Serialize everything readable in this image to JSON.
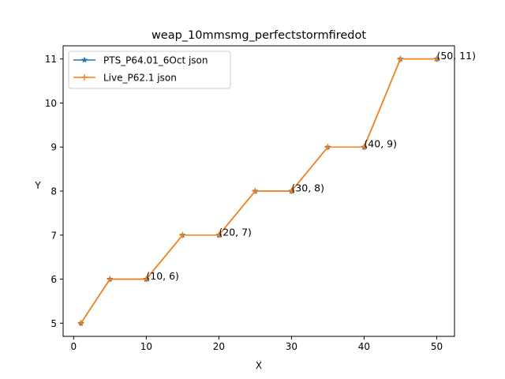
{
  "chart_data": {
    "type": "line",
    "title": "weap_10mmsmg_perfectstormfiredot",
    "xlabel": "X",
    "ylabel": "Y",
    "xlim": [
      -1.45,
      52.45
    ],
    "ylim": [
      4.7,
      11.3
    ],
    "xticks": [
      0,
      10,
      20,
      30,
      40,
      50
    ],
    "yticks": [
      5,
      6,
      7,
      8,
      9,
      10,
      11
    ],
    "grid": false,
    "legend_position": "upper-left",
    "series": [
      {
        "name": "PTS_P64.01_6Oct json",
        "color": "#1f77b4",
        "marker": "star",
        "x": [
          1,
          5,
          10,
          15,
          20,
          25,
          30,
          35,
          40,
          45,
          50
        ],
        "y": [
          5,
          6,
          6,
          7,
          7,
          8,
          8,
          9,
          9,
          11,
          11
        ]
      },
      {
        "name": "Live_P62.1 json",
        "color": "#ff7f0e",
        "marker": "plus",
        "x": [
          1,
          5,
          10,
          15,
          20,
          25,
          30,
          35,
          40,
          45,
          50
        ],
        "y": [
          5,
          6,
          6,
          7,
          7,
          8,
          8,
          9,
          9,
          11,
          11
        ]
      }
    ],
    "annotations": [
      {
        "x": 10,
        "y": 6,
        "text": "(10, 6)"
      },
      {
        "x": 20,
        "y": 7,
        "text": "(20, 7)"
      },
      {
        "x": 30,
        "y": 8,
        "text": "(30, 8)"
      },
      {
        "x": 40,
        "y": 9,
        "text": "(40, 9)"
      },
      {
        "x": 50,
        "y": 11,
        "text": "(50, 11)"
      }
    ]
  }
}
